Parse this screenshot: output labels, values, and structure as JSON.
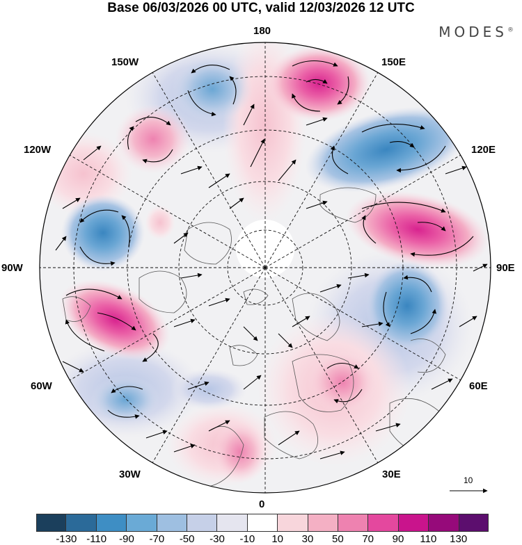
{
  "title": "Base 06/03/2026 00 UTC, valid 12/03/2026 12 UTC",
  "brand": "MODES",
  "brand_mark": "®",
  "longitude_labels": {
    "top": "180",
    "bottom": "0",
    "left": "90W",
    "right": "90E",
    "nw_upper": "150W",
    "nw_lower": "120W",
    "ne_upper": "150E",
    "ne_lower": "120E",
    "sw_upper": "60W",
    "sw_lower": "30W",
    "se_upper": "60E",
    "se_lower": "30E"
  },
  "reference_vector": {
    "label": "10"
  },
  "legend": {
    "ticks": [
      "-130",
      "-110",
      "-90",
      "-70",
      "-50",
      "-30",
      "-10",
      "10",
      "30",
      "50",
      "70",
      "90",
      "110",
      "130"
    ],
    "colors": [
      "#1b3f5c",
      "#2b6a99",
      "#3e8ec4",
      "#6aaad6",
      "#9ebfe1",
      "#c6d0e8",
      "#e5e5ef",
      "#ffffff",
      "#f8d6dc",
      "#f4b0c4",
      "#ee82b0",
      "#e4489e",
      "#c9148c",
      "#960a7a",
      "#5c0e6e"
    ]
  },
  "colors": {
    "land_gray": "#ebebeb",
    "coast": "#555555",
    "grid": "#111111",
    "arrow": "#000000"
  }
}
